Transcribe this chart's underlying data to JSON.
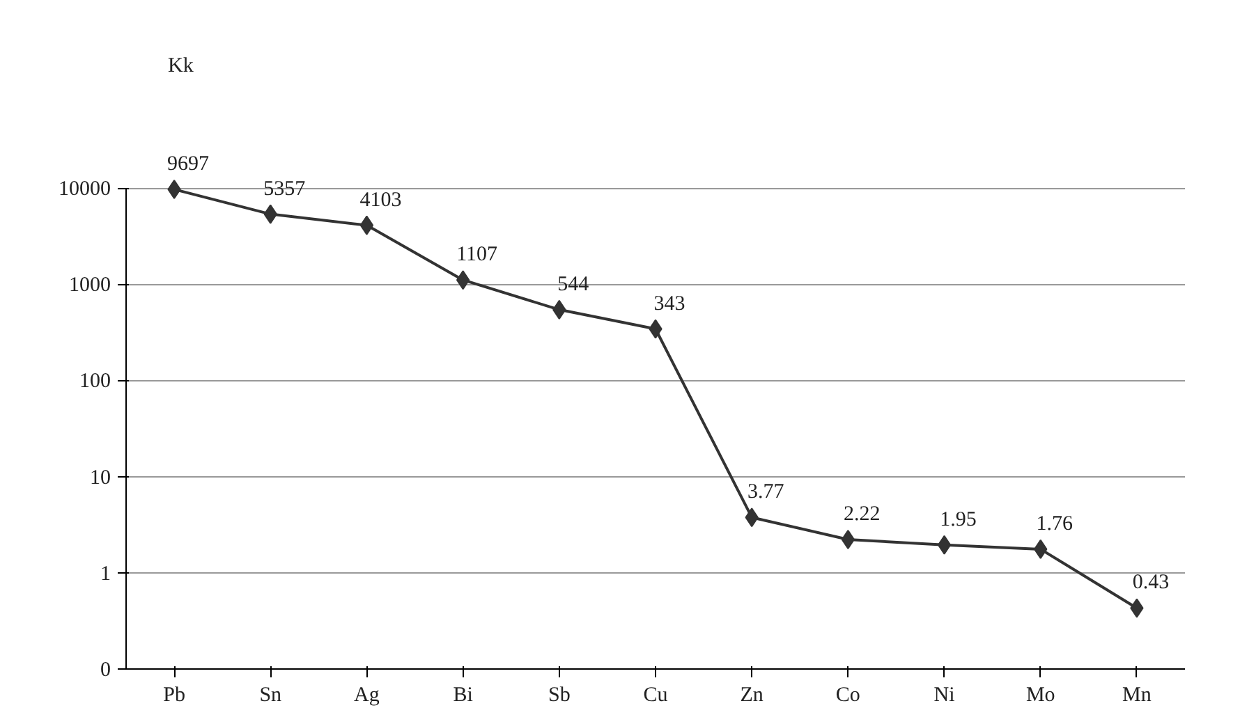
{
  "chart_data": {
    "type": "line",
    "ylabel": "Kk",
    "categories": [
      "Pb",
      "Sn",
      "Ag",
      "Bi",
      "Sb",
      "Cu",
      "Zn",
      "Co",
      "Ni",
      "Mo",
      "Mn"
    ],
    "series": [
      {
        "color": "#333333",
        "values": [
          9697,
          5357,
          4103,
          1107,
          544,
          343,
          3.77,
          2.22,
          1.95,
          1.76,
          0.43
        ]
      }
    ],
    "log": true,
    "ylim": [
      0.1,
      10000
    ],
    "yticks": [
      {
        "value": 0.1,
        "label": "0"
      },
      1,
      10,
      100,
      1000,
      10000
    ],
    "grid": "y",
    "marker": "diamond",
    "line_style": "solid",
    "data_labels": true,
    "legend": false
  }
}
